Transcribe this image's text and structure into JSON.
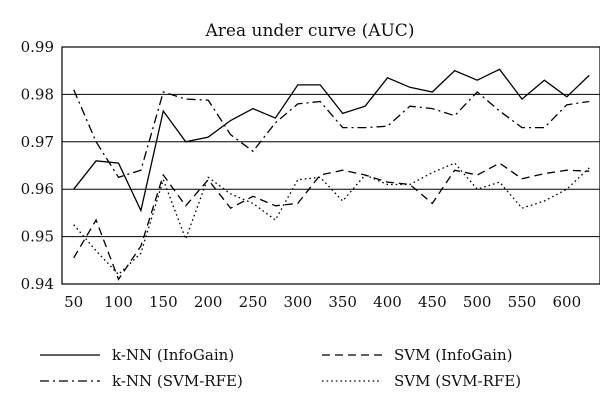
{
  "chart_data": {
    "type": "line",
    "title": "Area under curve (AUC)",
    "xlabel": "",
    "ylabel": "",
    "x": [
      50,
      75,
      100,
      125,
      150,
      175,
      200,
      225,
      250,
      275,
      300,
      325,
      350,
      375,
      400,
      425,
      450,
      475,
      500,
      525,
      550,
      575,
      600,
      625
    ],
    "xlim": [
      37,
      637
    ],
    "ylim": [
      0.94,
      0.99
    ],
    "xticks": [
      "50",
      "100",
      "150",
      "200",
      "250",
      "300",
      "350",
      "400",
      "450",
      "500",
      "550",
      "600"
    ],
    "xtick_values": [
      50,
      100,
      150,
      200,
      250,
      300,
      350,
      400,
      450,
      500,
      550,
      600
    ],
    "yticks": [
      "0.94",
      "0.95",
      "0.96",
      "0.97",
      "0.98",
      "0.99"
    ],
    "ytick_values": [
      0.94,
      0.95,
      0.96,
      0.97,
      0.98,
      0.99
    ],
    "grid": "horizontal",
    "legend_position": "bottom",
    "series": [
      {
        "name": "k-NN (InfoGain)",
        "style": "solid",
        "values": [
          0.96,
          0.966,
          0.9655,
          0.9555,
          0.9765,
          0.97,
          0.971,
          0.9745,
          0.977,
          0.975,
          0.982,
          0.982,
          0.976,
          0.9775,
          0.9835,
          0.9815,
          0.9805,
          0.985,
          0.983,
          0.9853,
          0.979,
          0.983,
          0.9795,
          0.984
        ]
      },
      {
        "name": "k-NN (SVM-RFE)",
        "style": "dashdot",
        "values": [
          0.981,
          0.97,
          0.9625,
          0.964,
          0.9805,
          0.979,
          0.9788,
          0.9715,
          0.968,
          0.974,
          0.978,
          0.9785,
          0.973,
          0.973,
          0.9733,
          0.9775,
          0.977,
          0.9755,
          0.9805,
          0.9765,
          0.973,
          0.973,
          0.9778,
          0.9785
        ]
      },
      {
        "name": "SVM (InfoGain)",
        "style": "dashed",
        "values": [
          0.9455,
          0.9535,
          0.941,
          0.948,
          0.963,
          0.9565,
          0.962,
          0.956,
          0.9585,
          0.9565,
          0.957,
          0.963,
          0.964,
          0.963,
          0.9615,
          0.961,
          0.957,
          0.964,
          0.963,
          0.9655,
          0.9622,
          0.9633,
          0.964,
          0.9638
        ]
      },
      {
        "name": "SVM (SVM-RFE)",
        "style": "dotted",
        "values": [
          0.9525,
          0.947,
          0.942,
          0.9465,
          0.962,
          0.9495,
          0.9625,
          0.959,
          0.957,
          0.9535,
          0.962,
          0.9625,
          0.9575,
          0.963,
          0.961,
          0.961,
          0.9635,
          0.9655,
          0.96,
          0.9615,
          0.956,
          0.9575,
          0.96,
          0.9645
        ]
      }
    ]
  }
}
